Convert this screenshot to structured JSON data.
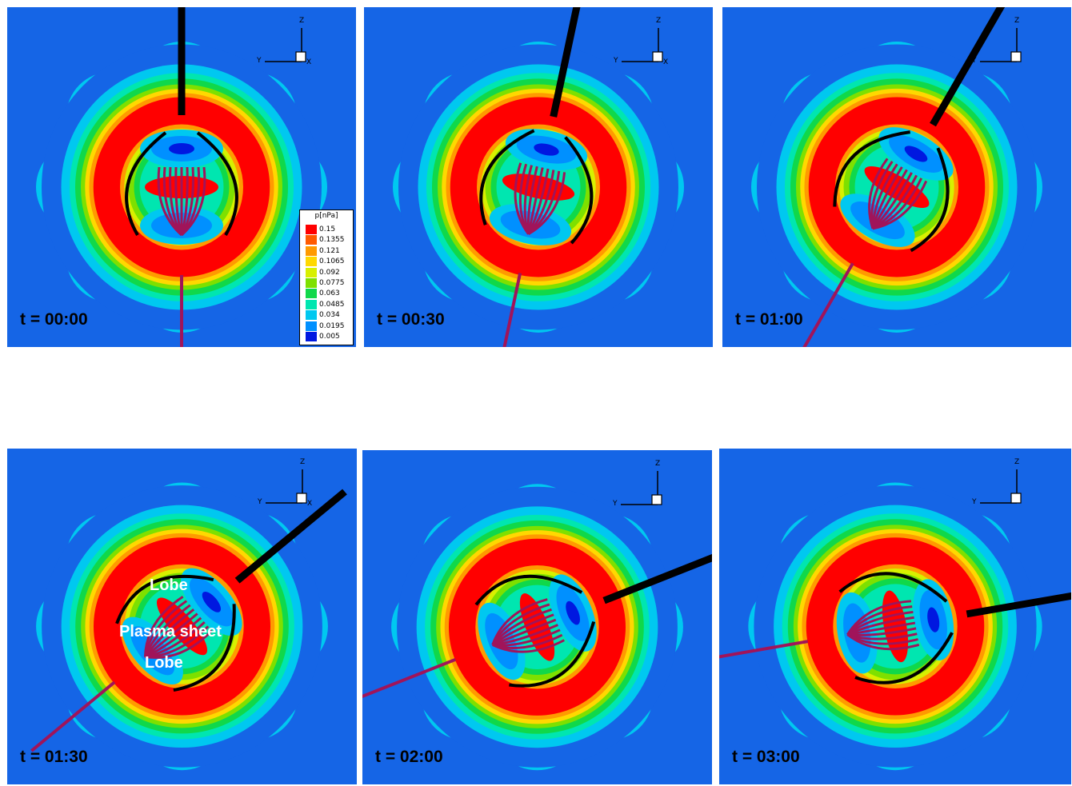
{
  "figure": {
    "panels": [
      {
        "time": "t = 00:00",
        "rotation": 0,
        "show_x_label": true,
        "labels": []
      },
      {
        "time": "t = 00:30",
        "rotation": 12,
        "show_x_label": true,
        "labels": []
      },
      {
        "time": "t = 01:00",
        "rotation": 30,
        "show_x_label": false,
        "labels": []
      },
      {
        "time": "t = 01:30",
        "rotation": 50,
        "show_x_label": true,
        "labels": [
          "Lobe",
          "Plasma sheet",
          "Lobe"
        ]
      },
      {
        "time": "t = 02:00",
        "rotation": 68,
        "show_x_label": false,
        "labels": []
      },
      {
        "time": "t = 03:00",
        "rotation": 80,
        "show_x_label": false,
        "labels": []
      }
    ],
    "axis": {
      "z_label": "Z",
      "y_label": "Y",
      "x_label": "X"
    },
    "legend": {
      "title": "p[nPa]",
      "entries": [
        {
          "value": "0.15",
          "color": "#ff0000"
        },
        {
          "value": "0.1355",
          "color": "#ff5a00"
        },
        {
          "value": "0.121",
          "color": "#ff9a00"
        },
        {
          "value": "0.1065",
          "color": "#ffd800"
        },
        {
          "value": "0.092",
          "color": "#d8f000"
        },
        {
          "value": "0.0775",
          "color": "#7ee000"
        },
        {
          "value": "0.063",
          "color": "#10d84a"
        },
        {
          "value": "0.0485",
          "color": "#00e6b0"
        },
        {
          "value": "0.034",
          "color": "#00c8f0"
        },
        {
          "value": "0.0195",
          "color": "#0090ff"
        },
        {
          "value": "0.005",
          "color": "#0018e0"
        }
      ]
    },
    "colors": {
      "background": "#1565e6",
      "ring": "#ff0000",
      "field_line_black": "#000000",
      "field_line_magenta": "#a0145a"
    }
  }
}
